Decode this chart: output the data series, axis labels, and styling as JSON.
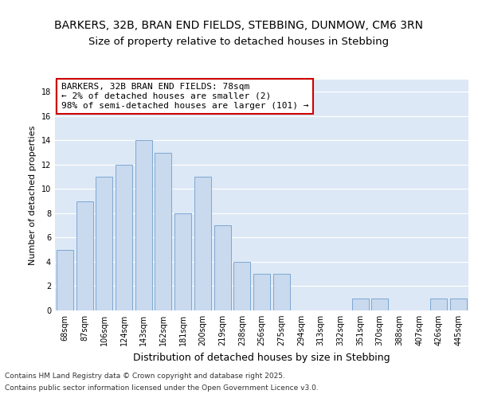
{
  "title1": "BARKERS, 32B, BRAN END FIELDS, STEBBING, DUNMOW, CM6 3RN",
  "title2": "Size of property relative to detached houses in Stebbing",
  "xlabel": "Distribution of detached houses by size in Stebbing",
  "ylabel": "Number of detached properties",
  "categories": [
    "68sqm",
    "87sqm",
    "106sqm",
    "124sqm",
    "143sqm",
    "162sqm",
    "181sqm",
    "200sqm",
    "219sqm",
    "238sqm",
    "256sqm",
    "275sqm",
    "294sqm",
    "313sqm",
    "332sqm",
    "351sqm",
    "370sqm",
    "388sqm",
    "407sqm",
    "426sqm",
    "445sqm"
  ],
  "values": [
    5,
    9,
    11,
    12,
    14,
    13,
    8,
    11,
    7,
    4,
    3,
    3,
    0,
    0,
    0,
    1,
    1,
    0,
    0,
    1,
    1
  ],
  "bar_color": "#c9d9ee",
  "bar_edge_color": "#7da8d4",
  "annotation_box_color": "#ffffff",
  "annotation_box_edge": "#cc0000",
  "annotation_text": "BARKERS, 32B BRAN END FIELDS: 78sqm\n← 2% of detached houses are smaller (2)\n98% of semi-detached houses are larger (101) →",
  "ylim": [
    0,
    19
  ],
  "yticks": [
    0,
    2,
    4,
    6,
    8,
    10,
    12,
    14,
    16,
    18
  ],
  "background_color": "#dce8f5",
  "grid_color": "#ffffff",
  "footer1": "Contains HM Land Registry data © Crown copyright and database right 2025.",
  "footer2": "Contains public sector information licensed under the Open Government Licence v3.0.",
  "title_fontsize": 10,
  "subtitle_fontsize": 9.5,
  "ylabel_fontsize": 8,
  "xlabel_fontsize": 9,
  "tick_fontsize": 7,
  "annotation_fontsize": 8,
  "footer_fontsize": 6.5
}
